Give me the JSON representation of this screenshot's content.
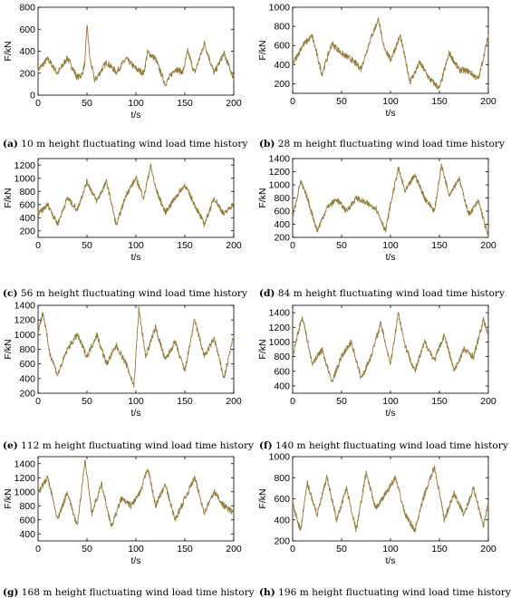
{
  "chart_data": [
    {
      "type": "line",
      "caption_label": "(a)",
      "caption_text": "10 m height fluctuating wind load time history",
      "xlabel": "t/s",
      "ylabel": "F/kN",
      "xlim": [
        0,
        200
      ],
      "ylim": [
        0,
        800
      ],
      "xticks": [
        0,
        50,
        100,
        150,
        200
      ],
      "yticks": [
        0,
        200,
        400,
        600,
        800
      ],
      "x": [
        0,
        10,
        20,
        30,
        40,
        45,
        48,
        50,
        53,
        58,
        70,
        80,
        90,
        100,
        108,
        112,
        120,
        130,
        140,
        148,
        153,
        160,
        170,
        180,
        190,
        200
      ],
      "values": [
        230,
        330,
        200,
        340,
        160,
        190,
        300,
        650,
        330,
        130,
        300,
        210,
        330,
        240,
        200,
        390,
        330,
        100,
        240,
        210,
        400,
        200,
        470,
        200,
        380,
        150
      ]
    },
    {
      "type": "line",
      "caption_label": "(b)",
      "caption_text": "28 m height fluctuating wind load time history",
      "xlabel": "t/s",
      "ylabel": "F/kN",
      "xlim": [
        0,
        200
      ],
      "ylim": [
        100,
        1000
      ],
      "xticks": [
        0,
        50,
        100,
        150,
        200
      ],
      "yticks": [
        200,
        400,
        600,
        800,
        1000
      ],
      "x": [
        0,
        10,
        20,
        30,
        40,
        50,
        60,
        70,
        80,
        88,
        92,
        100,
        110,
        120,
        130,
        140,
        150,
        160,
        170,
        180,
        190,
        200
      ],
      "values": [
        400,
        600,
        700,
        300,
        620,
        520,
        450,
        360,
        680,
        880,
        620,
        450,
        700,
        220,
        420,
        250,
        150,
        520,
        350,
        330,
        250,
        700
      ]
    },
    {
      "type": "line",
      "caption_label": "(c)",
      "caption_text": "56 m height fluctuating wind load time history",
      "xlabel": "t/s",
      "ylabel": "F/kN",
      "xlim": [
        0,
        200
      ],
      "ylim": [
        100,
        1300
      ],
      "xticks": [
        0,
        50,
        100,
        150,
        200
      ],
      "yticks": [
        200,
        400,
        600,
        800,
        1000,
        1200
      ],
      "x": [
        0,
        10,
        20,
        30,
        40,
        50,
        60,
        70,
        80,
        90,
        100,
        108,
        115,
        120,
        130,
        140,
        150,
        160,
        170,
        180,
        190,
        200
      ],
      "values": [
        450,
        600,
        300,
        700,
        520,
        950,
        650,
        950,
        280,
        750,
        1000,
        700,
        1200,
        850,
        480,
        700,
        900,
        600,
        300,
        700,
        450,
        620
      ]
    },
    {
      "type": "line",
      "caption_label": "(d)",
      "caption_text": "84 m height fluctuating wind load time history",
      "xlabel": "t/s",
      "ylabel": "F/kN",
      "xlim": [
        0,
        200
      ],
      "ylim": [
        200,
        1400
      ],
      "xticks": [
        0,
        50,
        100,
        150,
        200
      ],
      "yticks": [
        200,
        400,
        600,
        800,
        1000,
        1200,
        1400
      ],
      "x": [
        0,
        8,
        15,
        25,
        35,
        45,
        55,
        65,
        75,
        85,
        95,
        100,
        108,
        115,
        125,
        135,
        145,
        152,
        160,
        170,
        180,
        190,
        200
      ],
      "values": [
        500,
        1050,
        800,
        300,
        650,
        780,
        600,
        800,
        720,
        650,
        300,
        700,
        1250,
        900,
        1150,
        800,
        600,
        1300,
        850,
        1100,
        550,
        750,
        200
      ]
    },
    {
      "type": "line",
      "caption_label": "(e)",
      "caption_text": "112 m height fluctuating wind load time history",
      "xlabel": "t/s",
      "ylabel": "F/kN",
      "xlim": [
        0,
        200
      ],
      "ylim": [
        200,
        1400
      ],
      "xticks": [
        0,
        50,
        100,
        150,
        200
      ],
      "yticks": [
        200,
        400,
        600,
        800,
        1000,
        1200,
        1400
      ],
      "x": [
        0,
        5,
        12,
        20,
        30,
        40,
        50,
        60,
        70,
        80,
        90,
        98,
        103,
        110,
        120,
        130,
        140,
        150,
        160,
        170,
        180,
        190,
        200
      ],
      "values": [
        1050,
        1300,
        750,
        450,
        800,
        1000,
        700,
        1000,
        600,
        850,
        600,
        300,
        1350,
        700,
        1100,
        650,
        900,
        500,
        1200,
        700,
        950,
        400,
        1000
      ]
    },
    {
      "type": "line",
      "caption_label": "(f)",
      "caption_text": "140 m height fluctuating wind load time history",
      "xlabel": "t/s",
      "ylabel": "F/kN",
      "xlim": [
        0,
        200
      ],
      "ylim": [
        300,
        1500
      ],
      "xticks": [
        0,
        50,
        100,
        150,
        200
      ],
      "yticks": [
        400,
        600,
        800,
        1000,
        1200,
        1400
      ],
      "x": [
        0,
        5,
        10,
        20,
        30,
        40,
        50,
        60,
        70,
        80,
        90,
        100,
        108,
        115,
        125,
        135,
        145,
        155,
        165,
        175,
        185,
        195,
        200
      ],
      "values": [
        800,
        1100,
        1350,
        700,
        900,
        450,
        800,
        1000,
        500,
        800,
        1250,
        700,
        1400,
        950,
        600,
        1000,
        750,
        1100,
        600,
        900,
        800,
        1300,
        1100
      ]
    },
    {
      "type": "line",
      "caption_label": "(g)",
      "caption_text": "168 m height fluctuating wind load time history",
      "xlabel": "t/s",
      "ylabel": "F/kN",
      "xlim": [
        0,
        200
      ],
      "ylim": [
        300,
        1500
      ],
      "xticks": [
        0,
        50,
        100,
        150,
        200
      ],
      "yticks": [
        400,
        600,
        800,
        1000,
        1200,
        1400
      ],
      "x": [
        0,
        10,
        20,
        30,
        40,
        48,
        55,
        65,
        75,
        85,
        95,
        105,
        112,
        120,
        130,
        140,
        150,
        160,
        170,
        180,
        190,
        200
      ],
      "values": [
        1000,
        1200,
        600,
        1000,
        500,
        1450,
        700,
        1100,
        500,
        900,
        800,
        1000,
        1350,
        800,
        1100,
        600,
        900,
        1200,
        700,
        1000,
        800,
        700
      ]
    },
    {
      "type": "line",
      "caption_label": "(h)",
      "caption_text": "196 m height fluctuating wind load time history",
      "xlabel": "t/s",
      "ylabel": "F/kN",
      "xlim": [
        0,
        200
      ],
      "ylim": [
        200,
        1000
      ],
      "xticks": [
        0,
        50,
        100,
        150,
        200
      ],
      "yticks": [
        200,
        400,
        600,
        800,
        1000
      ],
      "x": [
        0,
        8,
        15,
        25,
        35,
        45,
        55,
        65,
        75,
        85,
        95,
        105,
        115,
        125,
        135,
        145,
        155,
        165,
        175,
        185,
        195,
        200
      ],
      "values": [
        550,
        300,
        750,
        450,
        800,
        400,
        700,
        300,
        850,
        500,
        650,
        800,
        450,
        300,
        650,
        900,
        400,
        650,
        450,
        700,
        350,
        550
      ]
    }
  ],
  "colors": {
    "series_a": "#c8735a",
    "series_b": "#6b8a2a",
    "axis": "#000000",
    "background": "#ffffff"
  }
}
